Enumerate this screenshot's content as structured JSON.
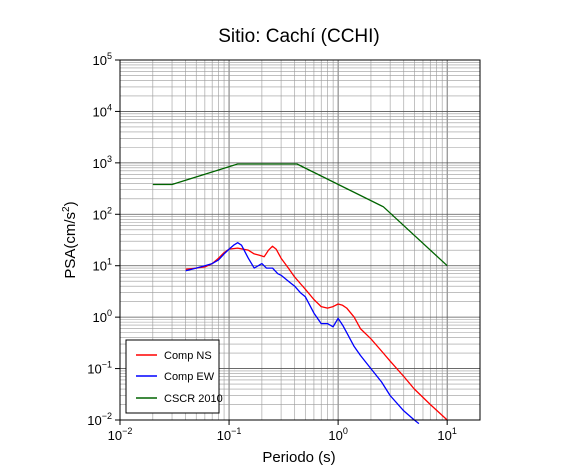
{
  "chart_data": {
    "type": "line",
    "title": "Sitio: Cachí (CCHI)",
    "xlabel": "Periodo (s)",
    "ylabel_main": "PSA(cm/s",
    "ylabel_sup": "2",
    "ylabel_end": ")",
    "x_scale": "log",
    "y_scale": "log",
    "xlim": [
      0.01,
      20
    ],
    "ylim": [
      0.01,
      100000
    ],
    "grid": true,
    "legend_position": "bottom-left",
    "x_ticks": [
      {
        "value": 0.01,
        "base": "10",
        "exp": "−2"
      },
      {
        "value": 0.1,
        "base": "10",
        "exp": "−1"
      },
      {
        "value": 1,
        "base": "10",
        "exp": "0"
      },
      {
        "value": 10,
        "base": "10",
        "exp": "1"
      }
    ],
    "y_ticks": [
      {
        "value": 0.01,
        "base": "10",
        "exp": "−2"
      },
      {
        "value": 0.1,
        "base": "10",
        "exp": "−1"
      },
      {
        "value": 1,
        "base": "10",
        "exp": "0"
      },
      {
        "value": 10,
        "base": "10",
        "exp": "1"
      },
      {
        "value": 100,
        "base": "10",
        "exp": "2"
      },
      {
        "value": 1000,
        "base": "10",
        "exp": "3"
      },
      {
        "value": 10000,
        "base": "10",
        "exp": "4"
      },
      {
        "value": 100000,
        "base": "10",
        "exp": "5"
      }
    ],
    "series": [
      {
        "name": "Comp NS",
        "color": "#ff0000",
        "x": [
          0.04,
          0.05,
          0.06,
          0.07,
          0.08,
          0.09,
          0.1,
          0.12,
          0.15,
          0.17,
          0.19,
          0.21,
          0.23,
          0.25,
          0.27,
          0.3,
          0.35,
          0.4,
          0.45,
          0.5,
          0.6,
          0.7,
          0.8,
          0.9,
          1.0,
          1.1,
          1.2,
          1.4,
          1.6,
          2.0,
          2.5,
          3,
          4,
          5,
          7,
          10
        ],
        "y": [
          8.5,
          9,
          9.5,
          11,
          14,
          18,
          21,
          22,
          20,
          17,
          16,
          15,
          20,
          24,
          21,
          14,
          9,
          6,
          4.5,
          3.5,
          2.2,
          1.6,
          1.5,
          1.6,
          1.8,
          1.7,
          1.5,
          1.0,
          0.6,
          0.38,
          0.22,
          0.14,
          0.07,
          0.04,
          0.02,
          0.01
        ]
      },
      {
        "name": "Comp EW",
        "color": "#0000ff",
        "x": [
          0.04,
          0.05,
          0.06,
          0.07,
          0.08,
          0.09,
          0.1,
          0.11,
          0.12,
          0.13,
          0.15,
          0.17,
          0.2,
          0.22,
          0.25,
          0.28,
          0.3,
          0.35,
          0.4,
          0.45,
          0.5,
          0.6,
          0.7,
          0.8,
          0.9,
          1.0,
          1.1,
          1.2,
          1.4,
          1.6,
          2.0,
          2.5,
          3,
          4,
          5,
          5.5
        ],
        "y": [
          8,
          9,
          10,
          11,
          13,
          17,
          21,
          25,
          28,
          25,
          14,
          9,
          11,
          9,
          9,
          7,
          6.5,
          5,
          4,
          3,
          2.5,
          1.2,
          0.75,
          0.75,
          0.65,
          0.95,
          0.7,
          0.5,
          0.27,
          0.18,
          0.1,
          0.055,
          0.03,
          0.015,
          0.01,
          0.0085
        ]
      },
      {
        "name": "CSCR 2010",
        "color": "#006400",
        "x": [
          0.02,
          0.03,
          0.12,
          0.42,
          2.6,
          10
        ],
        "y": [
          380,
          380,
          950,
          950,
          140,
          10
        ]
      }
    ]
  }
}
